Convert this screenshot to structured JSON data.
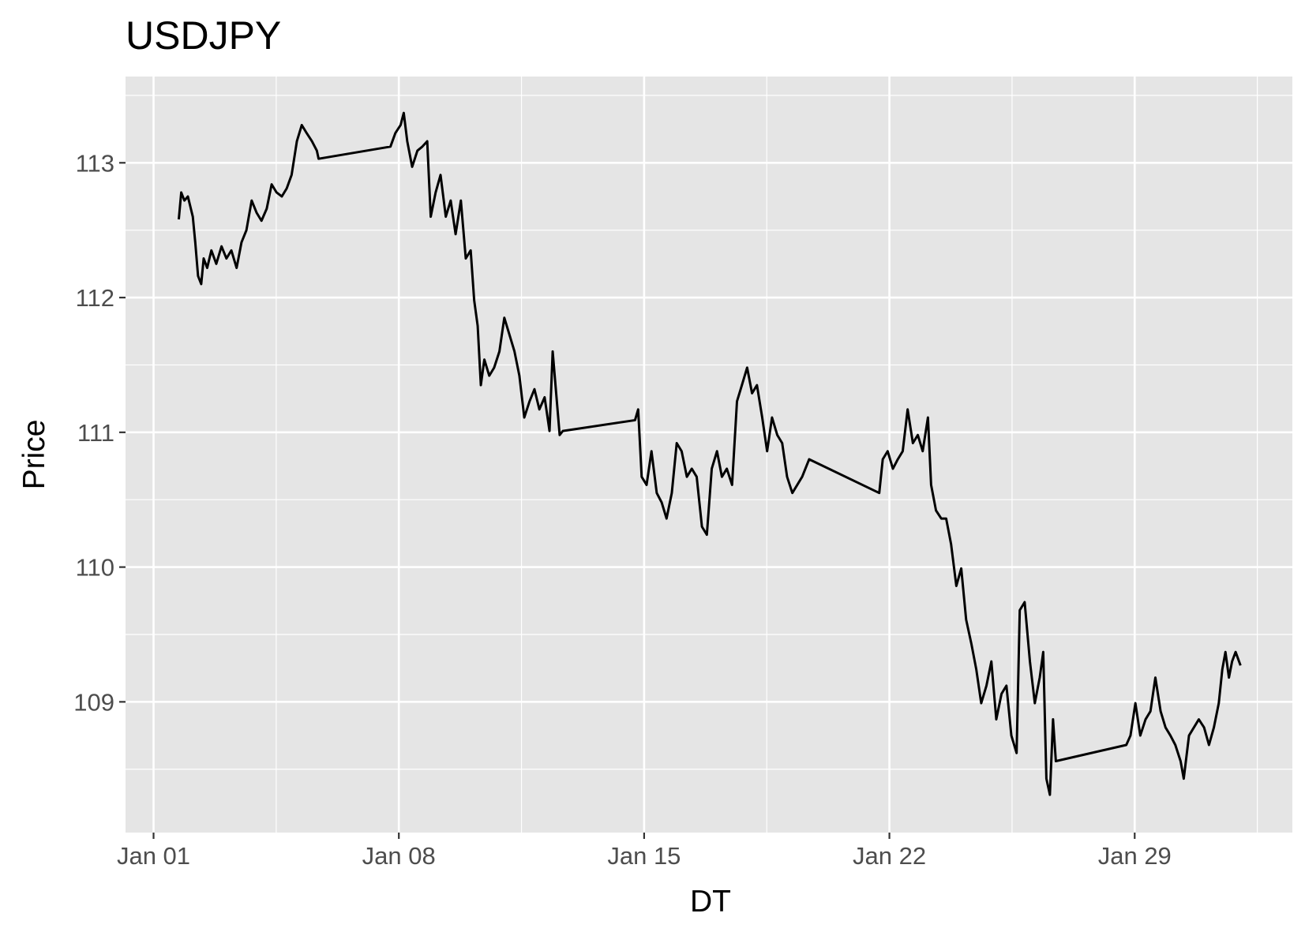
{
  "chart_data": {
    "type": "line",
    "title": "USDJPY",
    "x_label": "DT",
    "y_label": "Price",
    "color": "#000000",
    "grid": true,
    "xlim": [
      0.2,
      33.5
    ],
    "xticks": [
      {
        "value": 1,
        "label": "Jan 01"
      },
      {
        "value": 8,
        "label": "Jan 08"
      },
      {
        "value": 15,
        "label": "Jan 15"
      },
      {
        "value": 22,
        "label": "Jan 22"
      },
      {
        "value": 29,
        "label": "Jan 29"
      }
    ],
    "ylim": [
      108.03,
      113.64
    ],
    "yticks": [
      109,
      110,
      111,
      112,
      113
    ],
    "x": [
      1.72,
      1.79,
      1.88,
      1.98,
      2.12,
      2.19,
      2.27,
      2.36,
      2.43,
      2.53,
      2.65,
      2.79,
      2.94,
      3.08,
      3.22,
      3.37,
      3.51,
      3.65,
      3.8,
      3.94,
      4.08,
      4.23,
      4.37,
      4.51,
      4.66,
      4.8,
      4.94,
      5.09,
      5.23,
      5.37,
      5.52,
      5.66,
      5.71,
      7.76,
      7.9,
      8.05,
      8.14,
      8.24,
      8.38,
      8.53,
      8.67,
      8.81,
      8.91,
      9.05,
      9.19,
      9.34,
      9.48,
      9.62,
      9.77,
      9.91,
      10.05,
      10.15,
      10.25,
      10.34,
      10.44,
      10.58,
      10.72,
      10.87,
      11.01,
      11.15,
      11.3,
      11.44,
      11.58,
      11.73,
      11.87,
      12.01,
      12.16,
      12.3,
      12.39,
      12.49,
      12.59,
      12.68,
      14.74,
      14.83,
      14.93,
      15.07,
      15.21,
      15.36,
      15.5,
      15.64,
      15.79,
      15.93,
      16.07,
      16.22,
      16.36,
      16.5,
      16.65,
      16.79,
      16.93,
      17.08,
      17.22,
      17.36,
      17.51,
      17.65,
      17.79,
      17.94,
      18.08,
      18.22,
      18.37,
      18.51,
      18.65,
      18.8,
      18.94,
      19.08,
      19.23,
      19.37,
      19.51,
      19.71,
      21.71,
      21.81,
      21.95,
      22.1,
      22.24,
      22.38,
      22.52,
      22.67,
      22.81,
      22.95,
      23.1,
      23.19,
      23.33,
      23.48,
      23.62,
      23.76,
      23.91,
      24.05,
      24.19,
      24.34,
      24.48,
      24.62,
      24.77,
      24.91,
      25.05,
      25.2,
      25.34,
      25.48,
      25.63,
      25.72,
      25.86,
      26.01,
      26.15,
      26.29,
      26.39,
      26.48,
      26.58,
      26.67,
      26.75,
      28.76,
      28.88,
      29.02,
      29.16,
      29.31,
      29.45,
      29.59,
      29.74,
      29.88,
      30.02,
      30.16,
      30.31,
      30.4,
      30.55,
      30.69,
      30.83,
      30.98,
      31.12,
      31.26,
      31.4,
      31.5,
      31.59,
      31.69,
      31.78,
      31.88,
      32.02
    ],
    "values": [
      112.58,
      112.78,
      112.72,
      112.75,
      112.6,
      112.41,
      112.16,
      112.1,
      112.29,
      112.22,
      112.35,
      112.25,
      112.38,
      112.29,
      112.35,
      112.22,
      112.41,
      112.5,
      112.72,
      112.63,
      112.57,
      112.66,
      112.84,
      112.78,
      112.75,
      112.81,
      112.91,
      113.16,
      113.28,
      113.22,
      113.16,
      113.09,
      113.03,
      113.12,
      113.22,
      113.28,
      113.37,
      113.16,
      112.97,
      113.09,
      113.12,
      113.16,
      112.6,
      112.78,
      112.91,
      112.6,
      112.72,
      112.47,
      112.72,
      112.29,
      112.35,
      111.98,
      111.79,
      111.35,
      111.54,
      111.42,
      111.48,
      111.6,
      111.85,
      111.73,
      111.6,
      111.42,
      111.11,
      111.23,
      111.32,
      111.17,
      111.26,
      111.01,
      111.6,
      111.29,
      110.98,
      111.01,
      111.09,
      111.17,
      110.67,
      110.61,
      110.86,
      110.55,
      110.48,
      110.36,
      110.55,
      110.92,
      110.86,
      110.67,
      110.73,
      110.67,
      110.3,
      110.24,
      110.73,
      110.86,
      110.67,
      110.73,
      110.61,
      111.23,
      111.35,
      111.48,
      111.29,
      111.35,
      111.11,
      110.86,
      111.11,
      110.98,
      110.92,
      110.67,
      110.55,
      110.61,
      110.67,
      110.8,
      110.55,
      110.8,
      110.86,
      110.73,
      110.8,
      110.86,
      111.17,
      110.92,
      110.98,
      110.86,
      111.11,
      110.61,
      110.42,
      110.36,
      110.36,
      110.17,
      109.86,
      109.99,
      109.61,
      109.43,
      109.24,
      108.99,
      109.12,
      109.3,
      108.87,
      109.06,
      109.12,
      108.75,
      108.62,
      109.68,
      109.74,
      109.3,
      108.99,
      109.18,
      109.37,
      108.43,
      108.31,
      108.87,
      108.56,
      108.68,
      108.75,
      108.99,
      108.75,
      108.87,
      108.93,
      109.18,
      108.93,
      108.81,
      108.75,
      108.68,
      108.56,
      108.43,
      108.75,
      108.81,
      108.87,
      108.81,
      108.68,
      108.81,
      108.99,
      109.24,
      109.37,
      109.18,
      109.3,
      109.37,
      109.27
    ]
  }
}
